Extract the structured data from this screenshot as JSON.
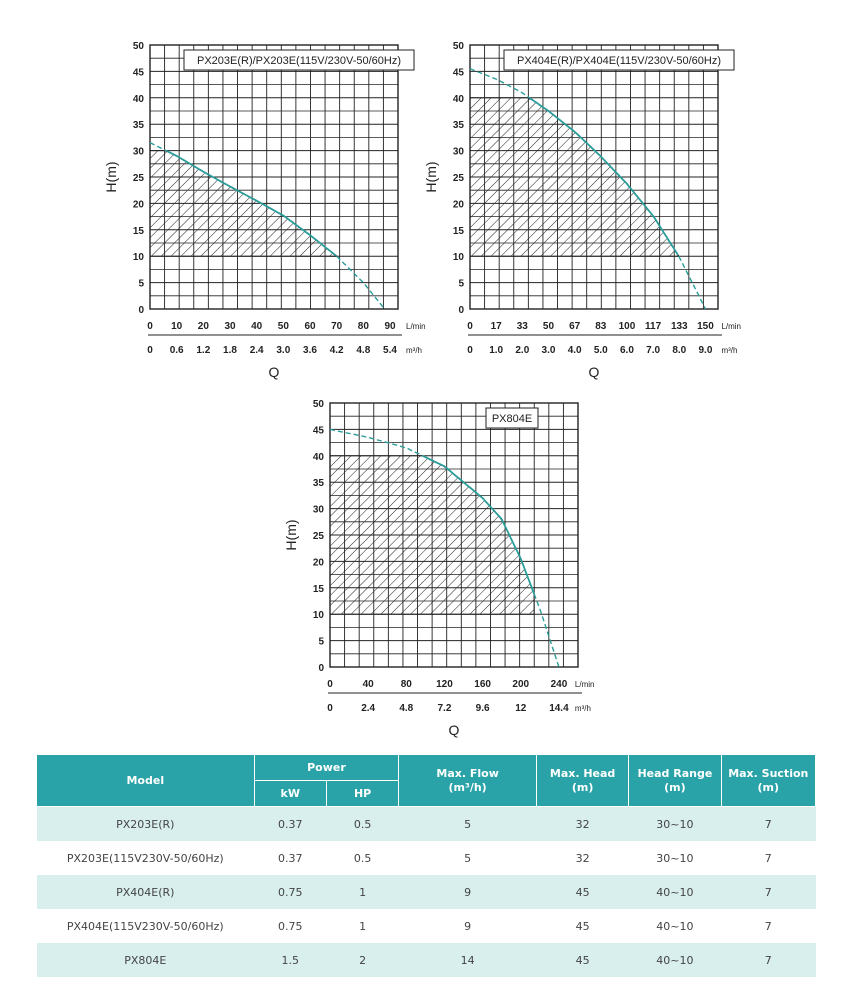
{
  "chart_data": [
    {
      "type": "line",
      "legend": "PX203E(R)/PX203E(115V/230V-50/60Hz)",
      "ylabel": "H(m)",
      "xlabel": "Q",
      "ylim": [
        0,
        50
      ],
      "y_ticks": [
        "0",
        "5",
        "10",
        "15",
        "20",
        "25",
        "30",
        "35",
        "40",
        "45",
        "50"
      ],
      "x_ticks_lmin": [
        "0",
        "10",
        "20",
        "30",
        "40",
        "50",
        "60",
        "70",
        "80",
        "90"
      ],
      "x_unit_lmin": "L/min",
      "x_ticks_m3h": [
        "0",
        "0.6",
        "1.2",
        "1.8",
        "2.4",
        "3.0",
        "3.6",
        "4.2",
        "4.8",
        "5.4"
      ],
      "x_unit_m3h": "m³/h",
      "x_max": 93,
      "curve": {
        "x": [
          0,
          10,
          20,
          30,
          40,
          50,
          60,
          70,
          80,
          88
        ],
        "y": [
          31.5,
          29,
          26,
          23.2,
          20.5,
          17.7,
          14,
          10,
          5,
          0
        ]
      },
      "operating_range": {
        "x_max": 70,
        "y_min": 10,
        "y_max": 30
      },
      "grid": true
    },
    {
      "type": "line",
      "legend": "PX404E(R)/PX404E(115V/230V-50/60Hz)",
      "ylabel": "H(m)",
      "xlabel": "Q",
      "ylim": [
        0,
        50
      ],
      "y_ticks": [
        "0",
        "5",
        "10",
        "15",
        "20",
        "25",
        "30",
        "35",
        "40",
        "45",
        "50"
      ],
      "x_ticks_lmin": [
        "0",
        "17",
        "33",
        "50",
        "67",
        "83",
        "100",
        "117",
        "133",
        "150"
      ],
      "x_unit_lmin": "L/min",
      "x_ticks_m3h": [
        "0",
        "1.0",
        "2.0",
        "3.0",
        "4.0",
        "5.0",
        "6.0",
        "7.0",
        "8.0",
        "9.0"
      ],
      "x_unit_m3h": "m³/h",
      "x_max": 158,
      "curve": {
        "x": [
          0,
          17,
          33,
          50,
          67,
          83,
          100,
          117,
          133,
          145,
          150
        ],
        "y": [
          45.5,
          43.5,
          41,
          37.5,
          33.5,
          29,
          23.7,
          17.5,
          10,
          3,
          0
        ]
      },
      "operating_range": {
        "x_max": 133,
        "y_min": 10,
        "y_max": 40
      },
      "grid": true
    },
    {
      "type": "line",
      "legend": "PX804E",
      "ylabel": "H(m)",
      "xlabel": "Q",
      "ylim": [
        0,
        50
      ],
      "y_ticks": [
        "0",
        "5",
        "10",
        "15",
        "20",
        "25",
        "30",
        "35",
        "40",
        "45",
        "50"
      ],
      "x_ticks_lmin": [
        "0",
        "40",
        "80",
        "120",
        "160",
        "200",
        "240"
      ],
      "x_unit_lmin": "L/min",
      "x_ticks_m3h": [
        "0",
        "2.4",
        "4.8",
        "7.2",
        "9.6",
        "12",
        "14.4"
      ],
      "x_unit_m3h": "m³/h",
      "x_max": 260,
      "curve": {
        "x": [
          0,
          40,
          80,
          120,
          160,
          180,
          200,
          220,
          240
        ],
        "y": [
          45,
          43.5,
          41.5,
          38,
          32,
          28,
          20.5,
          11,
          0
        ]
      },
      "operating_range": {
        "x_max": 214,
        "y_min": 10,
        "y_max": 40
      },
      "grid": true
    }
  ],
  "table": {
    "headers": {
      "model": "Model",
      "power": "Power",
      "kw": "kW",
      "hp": "HP",
      "max_flow": "Max. Flow",
      "max_flow_unit": "(m³/h)",
      "max_head": "Max. Head",
      "max_head_unit": "(m)",
      "head_range": "Head Range",
      "head_range_unit": "(m)",
      "max_suction": "Max. Suction",
      "max_suction_unit": "(m)"
    },
    "rows": [
      {
        "model": "PX203E(R)",
        "kw": "0.37",
        "hp": "0.5",
        "max_flow": "5",
        "max_head": "32",
        "head_range": "30~10",
        "max_suction": "7"
      },
      {
        "model": "PX203E(115V230V-50/60Hz)",
        "kw": "0.37",
        "hp": "0.5",
        "max_flow": "5",
        "max_head": "32",
        "head_range": "30~10",
        "max_suction": "7"
      },
      {
        "model": "PX404E(R)",
        "kw": "0.75",
        "hp": "1",
        "max_flow": "9",
        "max_head": "45",
        "head_range": "40~10",
        "max_suction": "7"
      },
      {
        "model": "PX404E(115V230V-50/60Hz)",
        "kw": "0.75",
        "hp": "1",
        "max_flow": "9",
        "max_head": "45",
        "head_range": "40~10",
        "max_suction": "7"
      },
      {
        "model": "PX804E",
        "kw": "1.5",
        "hp": "2",
        "max_flow": "14",
        "max_head": "45",
        "head_range": "40~10",
        "max_suction": "7"
      }
    ]
  },
  "colors": {
    "curve": "#2a9d9a",
    "header": "#2aa3a8",
    "row_alt": "#d8efee"
  }
}
